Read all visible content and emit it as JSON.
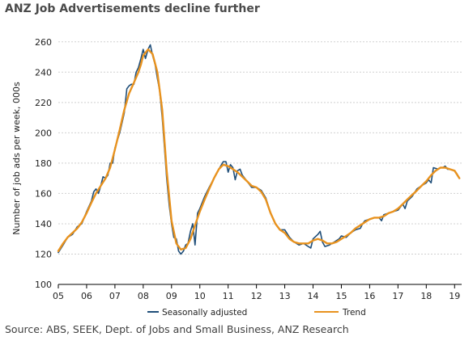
{
  "title": "ANZ Job Advertisements decline further",
  "source": "Source: ABS, SEEK, Dept. of Jobs and Small Business, ANZ Research",
  "colors": {
    "seasonally_adjusted": "#1f4e79",
    "trend": "#e8921e",
    "grid": "#d0d0d0",
    "axis": "#000000"
  },
  "chart_data": {
    "type": "line",
    "title": "ANZ Job Advertisements decline further",
    "ylabel": "Number of job ads per week, 000s",
    "xlabel": "",
    "ylim": [
      100,
      270
    ],
    "yticks": [
      100,
      120,
      140,
      160,
      180,
      200,
      220,
      240,
      260
    ],
    "xlim": [
      2005,
      2019.25
    ],
    "xticks": [
      {
        "x": 2005,
        "label": "05"
      },
      {
        "x": 2006,
        "label": "06"
      },
      {
        "x": 2007,
        "label": "07"
      },
      {
        "x": 2008,
        "label": "08"
      },
      {
        "x": 2009,
        "label": "09"
      },
      {
        "x": 2010,
        "label": "10"
      },
      {
        "x": 2011,
        "label": "11"
      },
      {
        "x": 2012,
        "label": "12"
      },
      {
        "x": 2013,
        "label": "13"
      },
      {
        "x": 2014,
        "label": "14"
      },
      {
        "x": 2015,
        "label": "15"
      },
      {
        "x": 2016,
        "label": "16"
      },
      {
        "x": 2017,
        "label": "17"
      },
      {
        "x": 2018,
        "label": "18"
      },
      {
        "x": 2019,
        "label": "19"
      }
    ],
    "grid": true,
    "legend": "bottom",
    "series": [
      {
        "name": "Seasonally adjusted",
        "points": [
          [
            2005.0,
            121
          ],
          [
            2005.17,
            126
          ],
          [
            2005.33,
            131
          ],
          [
            2005.5,
            133
          ],
          [
            2005.67,
            138
          ],
          [
            2005.83,
            140
          ],
          [
            2006.0,
            148
          ],
          [
            2006.17,
            155
          ],
          [
            2006.25,
            161
          ],
          [
            2006.33,
            163
          ],
          [
            2006.42,
            160
          ],
          [
            2006.5,
            165
          ],
          [
            2006.58,
            171
          ],
          [
            2006.67,
            170
          ],
          [
            2006.75,
            172
          ],
          [
            2006.83,
            180
          ],
          [
            2006.92,
            180
          ],
          [
            2007.0,
            190
          ],
          [
            2007.17,
            200
          ],
          [
            2007.33,
            213
          ],
          [
            2007.42,
            229
          ],
          [
            2007.5,
            231
          ],
          [
            2007.58,
            232
          ],
          [
            2007.67,
            232
          ],
          [
            2007.75,
            240
          ],
          [
            2007.83,
            243
          ],
          [
            2007.92,
            249
          ],
          [
            2008.0,
            255
          ],
          [
            2008.08,
            249
          ],
          [
            2008.17,
            255
          ],
          [
            2008.25,
            258
          ],
          [
            2008.33,
            251
          ],
          [
            2008.42,
            245
          ],
          [
            2008.5,
            236
          ],
          [
            2008.58,
            228
          ],
          [
            2008.67,
            210
          ],
          [
            2008.75,
            190
          ],
          [
            2008.83,
            170
          ],
          [
            2008.92,
            152
          ],
          [
            2009.0,
            140
          ],
          [
            2009.08,
            131
          ],
          [
            2009.17,
            130
          ],
          [
            2009.25,
            122
          ],
          [
            2009.33,
            120
          ],
          [
            2009.42,
            122
          ],
          [
            2009.5,
            126
          ],
          [
            2009.58,
            127
          ],
          [
            2009.67,
            135
          ],
          [
            2009.75,
            140
          ],
          [
            2009.83,
            126
          ],
          [
            2009.92,
            147
          ],
          [
            2010.0,
            150
          ],
          [
            2010.17,
            158
          ],
          [
            2010.33,
            164
          ],
          [
            2010.5,
            170
          ],
          [
            2010.67,
            176
          ],
          [
            2010.83,
            181
          ],
          [
            2010.92,
            181
          ],
          [
            2011.0,
            174
          ],
          [
            2011.08,
            179
          ],
          [
            2011.17,
            177
          ],
          [
            2011.25,
            169
          ],
          [
            2011.33,
            175
          ],
          [
            2011.42,
            176
          ],
          [
            2011.5,
            172
          ],
          [
            2011.67,
            168
          ],
          [
            2011.83,
            164
          ],
          [
            2012.0,
            164
          ],
          [
            2012.17,
            162
          ],
          [
            2012.33,
            157
          ],
          [
            2012.5,
            147
          ],
          [
            2012.67,
            140
          ],
          [
            2012.83,
            136
          ],
          [
            2013.0,
            136
          ],
          [
            2013.17,
            131
          ],
          [
            2013.33,
            128
          ],
          [
            2013.5,
            126
          ],
          [
            2013.67,
            127
          ],
          [
            2013.83,
            125
          ],
          [
            2013.92,
            124
          ],
          [
            2014.0,
            130
          ],
          [
            2014.17,
            133
          ],
          [
            2014.25,
            135
          ],
          [
            2014.33,
            128
          ],
          [
            2014.42,
            125
          ],
          [
            2014.58,
            126
          ],
          [
            2014.75,
            128
          ],
          [
            2014.92,
            130
          ],
          [
            2015.0,
            132
          ],
          [
            2015.17,
            131
          ],
          [
            2015.33,
            134
          ],
          [
            2015.5,
            136
          ],
          [
            2015.67,
            137
          ],
          [
            2015.75,
            140
          ],
          [
            2015.83,
            142
          ],
          [
            2016.0,
            143
          ],
          [
            2016.17,
            144
          ],
          [
            2016.33,
            144
          ],
          [
            2016.42,
            142
          ],
          [
            2016.5,
            146
          ],
          [
            2016.67,
            147
          ],
          [
            2016.83,
            148
          ],
          [
            2017.0,
            149
          ],
          [
            2017.17,
            153
          ],
          [
            2017.25,
            150
          ],
          [
            2017.33,
            155
          ],
          [
            2017.5,
            158
          ],
          [
            2017.67,
            163
          ],
          [
            2017.83,
            165
          ],
          [
            2018.0,
            167
          ],
          [
            2018.08,
            169
          ],
          [
            2018.17,
            167
          ],
          [
            2018.25,
            177
          ],
          [
            2018.42,
            176
          ],
          [
            2018.5,
            177
          ],
          [
            2018.58,
            177
          ],
          [
            2018.67,
            178
          ],
          [
            2018.75,
            176
          ],
          [
            2018.83,
            176
          ],
          [
            2019.0,
            175
          ],
          [
            2019.08,
            173
          ],
          [
            2019.17,
            170
          ]
        ]
      },
      {
        "name": "Trend",
        "points": [
          [
            2005.0,
            122
          ],
          [
            2005.17,
            127
          ],
          [
            2005.33,
            131
          ],
          [
            2005.5,
            134
          ],
          [
            2005.67,
            137
          ],
          [
            2005.83,
            141
          ],
          [
            2006.0,
            147
          ],
          [
            2006.17,
            154
          ],
          [
            2006.33,
            160
          ],
          [
            2006.5,
            165
          ],
          [
            2006.67,
            170
          ],
          [
            2006.83,
            177
          ],
          [
            2007.0,
            189
          ],
          [
            2007.17,
            202
          ],
          [
            2007.33,
            215
          ],
          [
            2007.5,
            226
          ],
          [
            2007.67,
            233
          ],
          [
            2007.83,
            240
          ],
          [
            2007.92,
            245
          ],
          [
            2008.0,
            251
          ],
          [
            2008.17,
            255
          ],
          [
            2008.33,
            252
          ],
          [
            2008.5,
            240
          ],
          [
            2008.67,
            215
          ],
          [
            2008.83,
            175
          ],
          [
            2009.0,
            142
          ],
          [
            2009.17,
            127
          ],
          [
            2009.33,
            123
          ],
          [
            2009.5,
            124
          ],
          [
            2009.67,
            130
          ],
          [
            2009.83,
            139
          ],
          [
            2010.0,
            148
          ],
          [
            2010.17,
            156
          ],
          [
            2010.33,
            163
          ],
          [
            2010.5,
            170
          ],
          [
            2010.67,
            176
          ],
          [
            2010.83,
            179
          ],
          [
            2011.0,
            178
          ],
          [
            2011.17,
            176
          ],
          [
            2011.33,
            174
          ],
          [
            2011.5,
            171
          ],
          [
            2011.67,
            168
          ],
          [
            2011.83,
            165
          ],
          [
            2012.0,
            164
          ],
          [
            2012.17,
            161
          ],
          [
            2012.33,
            156
          ],
          [
            2012.5,
            147
          ],
          [
            2012.67,
            140
          ],
          [
            2012.83,
            136
          ],
          [
            2013.0,
            134
          ],
          [
            2013.17,
            130
          ],
          [
            2013.33,
            128
          ],
          [
            2013.5,
            127
          ],
          [
            2013.67,
            127
          ],
          [
            2013.83,
            127
          ],
          [
            2014.0,
            129
          ],
          [
            2014.17,
            130
          ],
          [
            2014.33,
            129
          ],
          [
            2014.5,
            127
          ],
          [
            2014.67,
            127
          ],
          [
            2014.83,
            128
          ],
          [
            2015.0,
            130
          ],
          [
            2015.17,
            132
          ],
          [
            2015.33,
            134
          ],
          [
            2015.5,
            137
          ],
          [
            2015.67,
            139
          ],
          [
            2015.83,
            141
          ],
          [
            2016.0,
            143
          ],
          [
            2016.17,
            144
          ],
          [
            2016.33,
            144
          ],
          [
            2016.5,
            145
          ],
          [
            2016.67,
            147
          ],
          [
            2016.83,
            148
          ],
          [
            2017.0,
            150
          ],
          [
            2017.17,
            153
          ],
          [
            2017.33,
            156
          ],
          [
            2017.5,
            159
          ],
          [
            2017.67,
            162
          ],
          [
            2017.83,
            165
          ],
          [
            2018.0,
            168
          ],
          [
            2018.17,
            172
          ],
          [
            2018.33,
            175
          ],
          [
            2018.5,
            177
          ],
          [
            2018.67,
            177
          ],
          [
            2018.83,
            176
          ],
          [
            2019.0,
            175
          ],
          [
            2019.17,
            170
          ]
        ]
      }
    ]
  }
}
